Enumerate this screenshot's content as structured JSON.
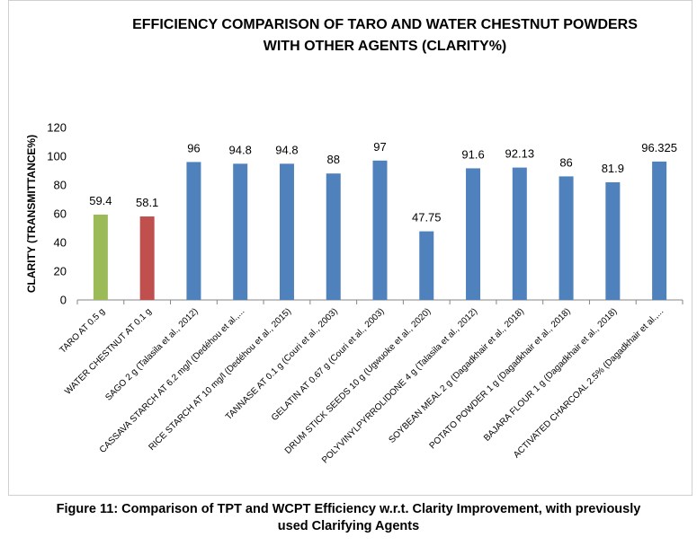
{
  "chart_data": {
    "type": "bar",
    "title": [
      "EFFICIENCY COMPARISON OF TARO AND WATER CHESTNUT POWDERS",
      "WITH OTHER AGENTS (CLARITY%)"
    ],
    "ylabel": "CLARITY (TRANSMITTANCE%)",
    "xlabel": "",
    "ylim": [
      0,
      120
    ],
    "yticks": [
      "0",
      "20",
      "40",
      "60",
      "80",
      "100",
      "120"
    ],
    "grid": false,
    "categories": [
      "TARO AT 0.5 g",
      "WATER CHESTNUT AT 0.1 g",
      "SAGO 2 g (Talasila et al., 2012)",
      "CASSAVA STARCH AT 6.2 mg/l (Dedéhou et al.,...",
      "RICE STARCH AT 10 mg/l (Dedéhou et al., 2015)",
      "TANNASE AT 0.1 g (Couri et al., 2003)",
      "GELATIN AT 0.67 g (Couri et al., 2003)",
      "DRUM STICK SEEDS 10 g (Ugwuoke et al., 2020)",
      "POLYVINYLPYRROLIDONE 4 g (Talasila et al., 2012)",
      "SOYBEAN MEAL 2 g (Dagadkhair et al., 2018)",
      "POTATO POWDER 1 g (Dagadkhair et al., 2018)",
      "BAJARA FLOUR 1 g (Dagadkhair et al., 2018)",
      "ACTIVATED CHARCOAL 2.5% (Dagadkhair et al.,..."
    ],
    "values": [
      59.4,
      58.1,
      96,
      94.8,
      94.8,
      88,
      97,
      47.75,
      91.6,
      92.13,
      86,
      81.9,
      96.325
    ],
    "data_labels": [
      "59.4",
      "58.1",
      "96",
      "94.8",
      "94.8",
      "88",
      "97",
      "47.75",
      "91.6",
      "92.13",
      "86",
      "81.9",
      "96.325"
    ],
    "colors": [
      "#9bbb59",
      "#c0504d",
      "#4f81bd",
      "#4f81bd",
      "#4f81bd",
      "#4f81bd",
      "#4f81bd",
      "#4f81bd",
      "#4f81bd",
      "#4f81bd",
      "#4f81bd",
      "#4f81bd",
      "#4f81bd"
    ]
  },
  "caption": {
    "line1": "Figure 11: Comparison of TPT and WCPT Efficiency w.r.t. Clarity Improvement, with previously",
    "line2": "used Clarifying Agents"
  }
}
